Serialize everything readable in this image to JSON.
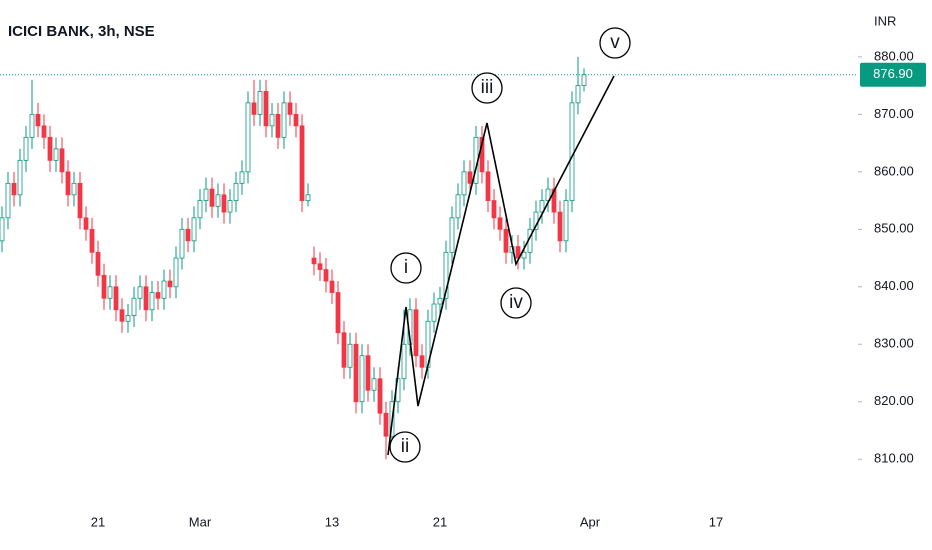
{
  "chart_data": {
    "type": "candlestick",
    "title": "ICICI BANK, 3h, NSE",
    "y_unit": "INR",
    "categories": [
      null,
      null,
      null,
      null,
      null,
      null,
      null,
      null,
      null,
      null,
      null,
      null,
      null,
      null,
      null,
      null,
      "21",
      null,
      null,
      null,
      null,
      null,
      null,
      null,
      null,
      null,
      null,
      null,
      null,
      null,
      null,
      null,
      null,
      "Mar",
      null,
      null,
      null,
      null,
      null,
      null,
      null,
      null,
      null,
      null,
      null,
      null,
      null,
      null,
      null,
      null,
      null,
      null,
      null,
      null,
      null,
      "13",
      null,
      null,
      null,
      null,
      null,
      null,
      null,
      null,
      null,
      null,
      null,
      null,
      null,
      null,
      null,
      null,
      null,
      "21",
      null,
      null,
      null,
      null,
      null,
      null,
      null,
      null,
      null,
      null,
      null,
      null,
      null,
      null,
      null,
      null,
      null,
      null,
      null,
      null,
      null,
      null,
      null,
      null,
      "Apr",
      null,
      null,
      null,
      null,
      null,
      null,
      null,
      null,
      null,
      null,
      null,
      null,
      null,
      null,
      null,
      null,
      null,
      null,
      null,
      null,
      "17"
    ],
    "open": [
      848,
      852,
      858,
      856,
      862,
      866,
      870,
      868,
      866,
      862,
      864,
      860,
      856,
      858,
      852,
      850,
      846,
      842,
      838,
      840,
      836,
      834,
      835,
      838,
      840,
      836,
      839,
      838,
      841,
      840,
      845,
      850,
      848,
      852,
      855,
      857,
      854,
      856,
      853,
      855,
      858,
      860,
      872,
      870,
      874,
      868,
      870,
      866,
      872,
      870,
      868,
      855,
      845,
      844,
      843,
      841,
      839,
      832,
      826,
      830,
      820,
      828,
      822,
      824,
      818,
      814,
      820,
      824,
      830,
      836,
      828,
      826,
      834,
      837,
      838,
      846,
      852,
      856,
      860,
      858,
      866,
      860,
      855,
      852,
      850,
      846,
      847,
      845,
      846,
      850,
      853,
      855,
      857,
      853,
      848,
      855,
      872,
      875,
      null,
      null,
      null,
      null,
      null,
      null,
      null,
      null,
      null,
      null,
      null,
      null,
      null,
      null,
      null,
      null,
      null,
      null,
      null,
      null,
      null,
      null
    ],
    "high": [
      854,
      860,
      860,
      864,
      868,
      876,
      872,
      870,
      868,
      866,
      866,
      862,
      860,
      860,
      854,
      852,
      848,
      844,
      842,
      842,
      838,
      837,
      840,
      842,
      842,
      841,
      841,
      843,
      843,
      847,
      852,
      852,
      854,
      857,
      859,
      859,
      858,
      858,
      857,
      860,
      862,
      874,
      876,
      876,
      876,
      872,
      872,
      874,
      874,
      872,
      870,
      858,
      847,
      846,
      845,
      843,
      841,
      834,
      832,
      832,
      830,
      830,
      826,
      826,
      820,
      822,
      826,
      836,
      838,
      838,
      830,
      836,
      839,
      840,
      848,
      854,
      858,
      862,
      862,
      868,
      868,
      862,
      857,
      854,
      852,
      849,
      849,
      848,
      852,
      855,
      857,
      859,
      859,
      855,
      857,
      874,
      880,
      878,
      null,
      null,
      null,
      null,
      null,
      null,
      null,
      null,
      null,
      null,
      null,
      null,
      null,
      null,
      null,
      null,
      null,
      null,
      null,
      null,
      null,
      null
    ],
    "low": [
      846,
      850,
      854,
      854,
      860,
      864,
      866,
      864,
      860,
      860,
      858,
      854,
      854,
      850,
      848,
      844,
      840,
      836,
      836,
      834,
      832,
      832,
      833,
      836,
      834,
      834,
      836,
      836,
      838,
      838,
      843,
      846,
      846,
      850,
      853,
      852,
      852,
      851,
      851,
      853,
      856,
      858,
      868,
      868,
      866,
      866,
      864,
      864,
      868,
      866,
      853,
      854,
      842,
      841,
      839,
      837,
      830,
      824,
      824,
      818,
      818,
      820,
      820,
      816,
      810,
      812,
      818,
      822,
      828,
      826,
      824,
      824,
      832,
      835,
      836,
      844,
      850,
      854,
      856,
      856,
      858,
      853,
      850,
      848,
      844,
      844,
      843,
      843,
      844,
      848,
      851,
      853,
      851,
      846,
      846,
      853,
      870,
      874,
      null,
      null,
      null,
      null,
      null,
      null,
      null,
      null,
      null,
      null,
      null,
      null,
      null,
      null,
      null,
      null,
      null,
      null,
      null,
      null,
      null,
      null
    ],
    "close": [
      852,
      858,
      856,
      862,
      866,
      870,
      868,
      866,
      862,
      864,
      860,
      856,
      858,
      852,
      850,
      846,
      842,
      838,
      840,
      836,
      834,
      835,
      838,
      840,
      836,
      839,
      838,
      841,
      840,
      845,
      850,
      848,
      852,
      855,
      857,
      854,
      856,
      853,
      855,
      858,
      860,
      872,
      870,
      874,
      868,
      870,
      866,
      872,
      870,
      868,
      855,
      856,
      844,
      843,
      841,
      839,
      832,
      826,
      830,
      820,
      828,
      822,
      824,
      818,
      814,
      820,
      824,
      830,
      836,
      828,
      826,
      834,
      837,
      838,
      846,
      852,
      856,
      860,
      858,
      866,
      860,
      855,
      852,
      850,
      846,
      847,
      845,
      846,
      850,
      853,
      855,
      857,
      853,
      848,
      855,
      872,
      875,
      876.9,
      null,
      null,
      null,
      null,
      null,
      null,
      null,
      null,
      null,
      null,
      null,
      null,
      null,
      null,
      null,
      null,
      null,
      null,
      null,
      null,
      null,
      null
    ],
    "up_color": "#089981",
    "down_color": "#f23645",
    "ylim": [
      802.9,
      889.9
    ],
    "yticks": [
      {
        "value": 810,
        "label": "810.00"
      },
      {
        "value": 820,
        "label": "820.00"
      },
      {
        "value": 830,
        "label": "830.00"
      },
      {
        "value": 840,
        "label": "840.00"
      },
      {
        "value": 850,
        "label": "850.00"
      },
      {
        "value": 860,
        "label": "860.00"
      },
      {
        "value": 870,
        "label": "870.00"
      },
      {
        "value": 880,
        "label": "880.00"
      }
    ],
    "last_price": {
      "value": 876.9,
      "label": "876.90"
    },
    "annotations": [
      "i",
      "ii",
      "iii",
      "iv",
      "v"
    ]
  }
}
